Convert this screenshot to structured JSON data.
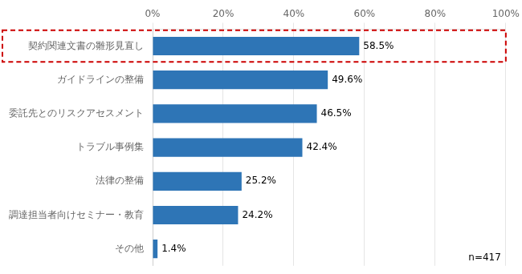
{
  "chart_data": {
    "type": "bar",
    "orientation": "horizontal",
    "categories": [
      "その他",
      "調達担当者向けセミナー・教育",
      "法律の整備",
      "トラブル事例集",
      "委託先とのリスクアセスメント",
      "ガイドラインの整備",
      "契約関連文書の雛形見直し"
    ],
    "values": [
      1.4,
      24.2,
      25.2,
      42.4,
      46.5,
      49.6,
      58.5
    ],
    "value_labels": [
      "1.4%",
      "24.2%",
      "25.2%",
      "42.4%",
      "46.5%",
      "49.6%",
      "58.5%"
    ],
    "data_labels": true,
    "color": "#2E75B6",
    "xlim": [
      0,
      100
    ],
    "xticks": [
      {
        "value": 0,
        "label": "0%"
      },
      {
        "value": 20,
        "label": "20%"
      },
      {
        "value": 40,
        "label": "40%"
      },
      {
        "value": 60,
        "label": "60%"
      },
      {
        "value": 80,
        "label": "80%"
      },
      {
        "value": 100,
        "label": "100%"
      }
    ],
    "grid": true,
    "annotations": [
      "n=417"
    ],
    "highlight": {
      "category": "契約関連文書の雛形見直し",
      "color": "#cc0000"
    }
  }
}
